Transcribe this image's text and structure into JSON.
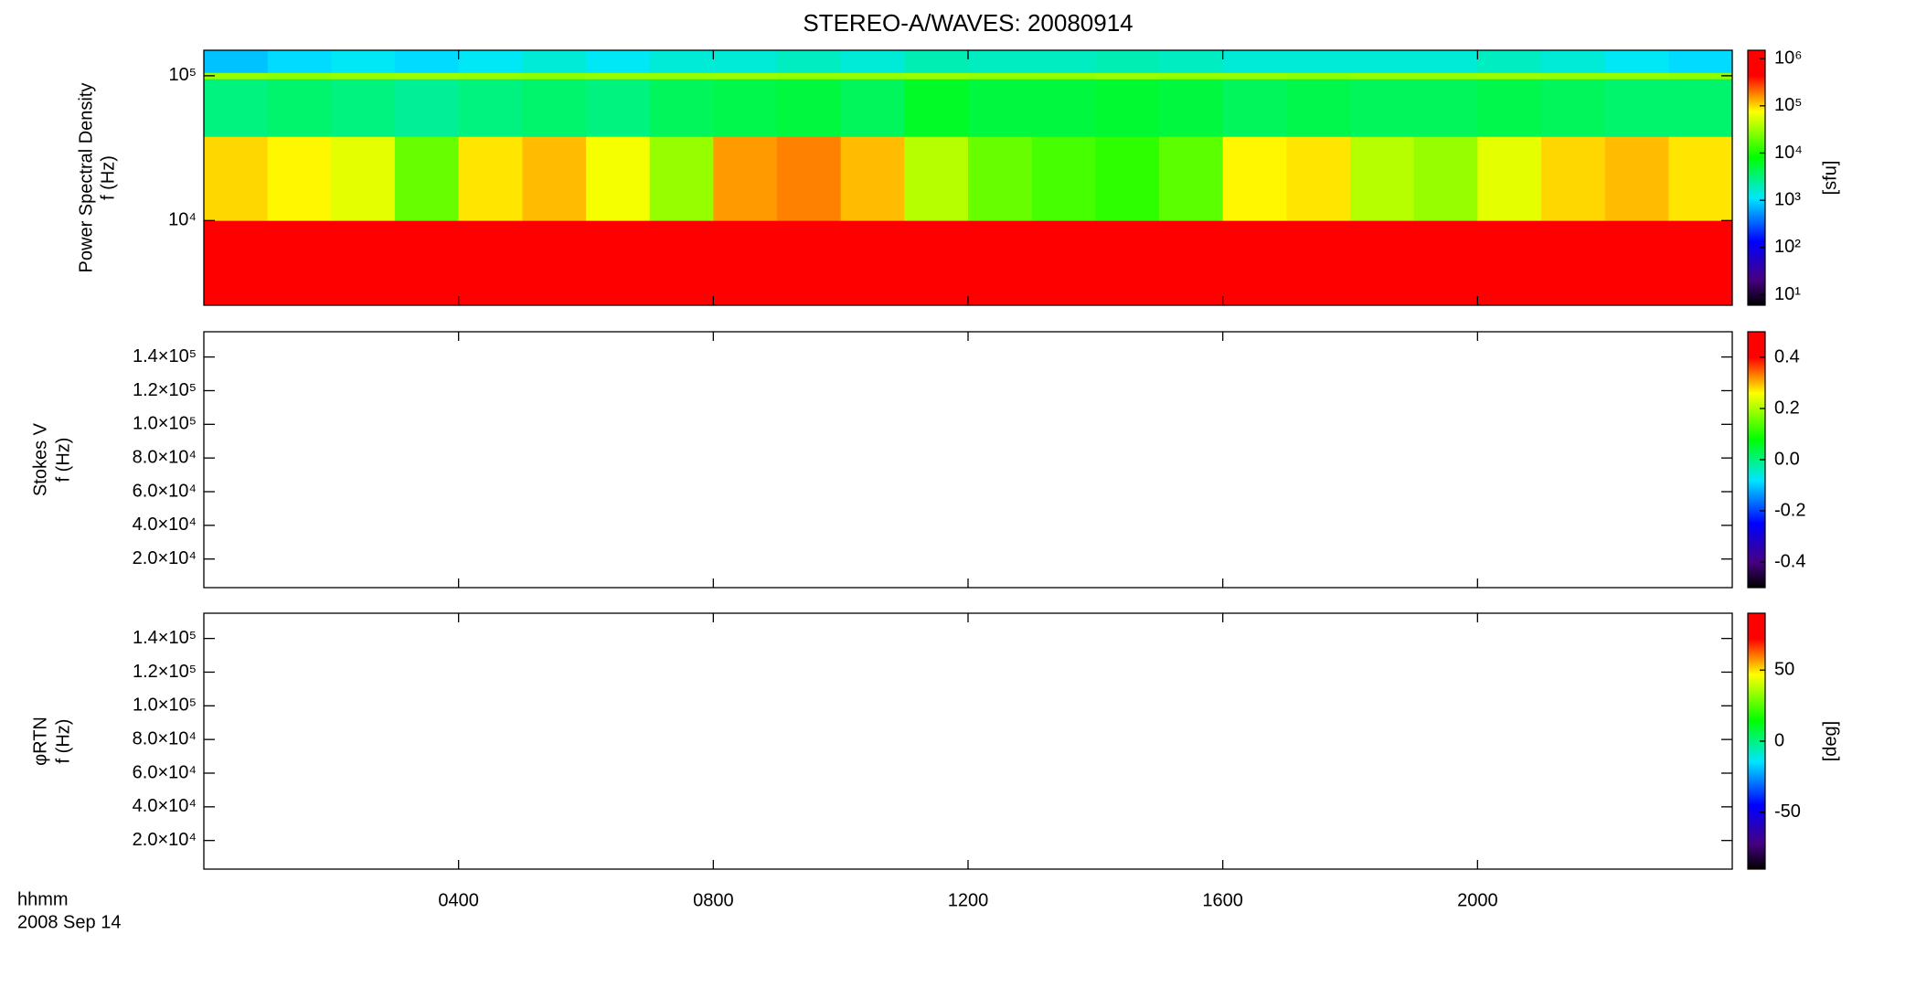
{
  "chart_data": [
    {
      "type": "heatmap",
      "title": "STEREO-A/WAVES: 20080914",
      "ylabel": [
        "Power Spectral Density",
        "f (Hz)"
      ],
      "xlim": [
        0,
        24
      ],
      "ylim": [
        2600,
        150000
      ],
      "yscale": "log",
      "yticks": [
        {
          "value": 10000,
          "label": "10⁴"
        },
        {
          "value": 100000,
          "label": "10⁵"
        }
      ],
      "x_bins": [
        0,
        1,
        2,
        3,
        4,
        5,
        6,
        7,
        8,
        9,
        10,
        11,
        12,
        13,
        14,
        15,
        16,
        17,
        18,
        19,
        20,
        21,
        22,
        23,
        24
      ],
      "y_bins": [
        2600,
        10000,
        38000,
        95000,
        105000,
        150000
      ],
      "z": [
        [
          1500000,
          1200000,
          1500000,
          1500000,
          1000000,
          1500000,
          1200000,
          1500000,
          1500000,
          1500000,
          1500000,
          1500000,
          1200000,
          1000000,
          1500000,
          1000000,
          1500000,
          1500000,
          1500000,
          1500000,
          1200000,
          1500000,
          1500000,
          1500000
        ],
        [
          100000,
          80000,
          60000,
          20000,
          90000,
          120000,
          70000,
          30000,
          150000,
          180000,
          120000,
          40000,
          20000,
          15000,
          12000,
          18000,
          80000,
          90000,
          40000,
          30000,
          60000,
          100000,
          120000,
          90000
        ],
        [
          3000,
          3500,
          3000,
          2500,
          3000,
          3500,
          3000,
          4000,
          4500,
          5000,
          4000,
          6000,
          5000,
          5000,
          5500,
          5000,
          4000,
          4500,
          4000,
          4000,
          4500,
          4000,
          3500,
          3500
        ],
        [
          30000,
          28000,
          30000,
          32000,
          30000,
          28000,
          30000,
          30000,
          32000,
          30000,
          30000,
          32000,
          30000,
          30000,
          32000,
          30000,
          30000,
          28000,
          30000,
          30000,
          32000,
          30000,
          30000,
          28000
        ],
        [
          800,
          1000,
          1200,
          1000,
          1200,
          1500,
          1200,
          1500,
          1500,
          1800,
          1500,
          2000,
          1800,
          1800,
          2000,
          1800,
          1500,
          1500,
          1500,
          1500,
          1800,
          1500,
          1200,
          1000
        ]
      ],
      "zlim": [
        6,
        1500000
      ],
      "zscale": "log",
      "colormap": "rainbow",
      "zticks": [
        {
          "value": 10,
          "label": "10¹"
        },
        {
          "value": 100,
          "label": "10²"
        },
        {
          "value": 1000,
          "label": "10³"
        },
        {
          "value": 10000,
          "label": "10⁴"
        },
        {
          "value": 100000,
          "label": "10⁵"
        },
        {
          "value": 1000000,
          "label": "10⁶"
        }
      ],
      "zlabel": "[sfu]"
    },
    {
      "type": "heatmap",
      "ylabel": [
        "Stokes V",
        "f (Hz)"
      ],
      "xlim": [
        0,
        24
      ],
      "ylim": [
        3000,
        155000
      ],
      "yticks": [
        {
          "value": 20000,
          "label": "2.0×10⁴"
        },
        {
          "value": 40000,
          "label": "4.0×10⁴"
        },
        {
          "value": 60000,
          "label": "6.0×10⁴"
        },
        {
          "value": 80000,
          "label": "8.0×10⁴"
        },
        {
          "value": 100000,
          "label": "1.0×10⁵"
        },
        {
          "value": 120000,
          "label": "1.2×10⁵"
        },
        {
          "value": 140000,
          "label": "1.4×10⁵"
        }
      ],
      "zlim": [
        -0.5,
        0.5
      ],
      "colormap": "rainbow",
      "zticks": [
        -0.4,
        -0.2,
        {
          "value": 0,
          "label": "0.0"
        },
        0.2,
        0.4
      ]
    },
    {
      "type": "heatmap",
      "ylabel": [
        "φRTN",
        "f (Hz)"
      ],
      "xlim": [
        0,
        24
      ],
      "ylim": [
        3000,
        155000
      ],
      "yticks": [
        {
          "value": 20000,
          "label": "2.0×10⁴"
        },
        {
          "value": 40000,
          "label": "4.0×10⁴"
        },
        {
          "value": 60000,
          "label": "6.0×10⁴"
        },
        {
          "value": 80000,
          "label": "8.0×10⁴"
        },
        {
          "value": 100000,
          "label": "1.0×10⁵"
        },
        {
          "value": 120000,
          "label": "1.2×10⁵"
        },
        {
          "value": 140000,
          "label": "1.4×10⁵"
        }
      ],
      "zlim": [
        -90,
        90
      ],
      "colormap": "rainbow",
      "zticks": [
        -50,
        0,
        50
      ],
      "zlabel": "[deg]",
      "xticks": [
        {
          "value": 4,
          "label": "0400"
        },
        {
          "value": 8,
          "label": "0800"
        },
        {
          "value": 12,
          "label": "1200"
        },
        {
          "value": 16,
          "label": "1600"
        },
        {
          "value": 20,
          "label": "2000"
        }
      ],
      "xlabel": [
        "hhmm",
        "2008 Sep 14"
      ]
    }
  ]
}
